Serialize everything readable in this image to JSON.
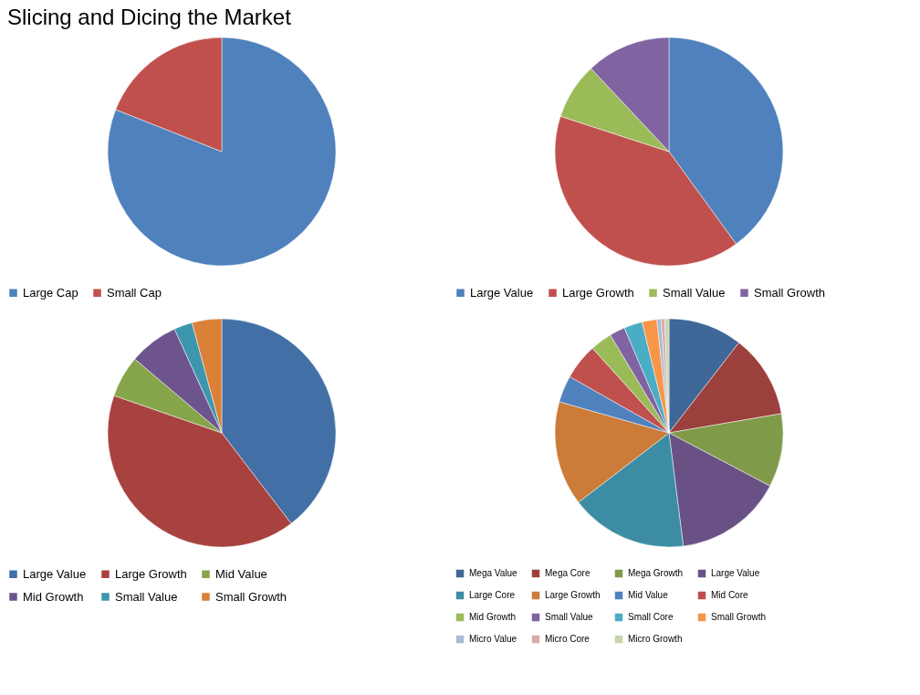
{
  "chart_data": [
    {
      "type": "pie",
      "title": "Slicing and Dicing the Market",
      "categories": [
        "Large Cap",
        "Small Cap"
      ],
      "values": [
        81,
        19
      ],
      "colors": [
        "#4f81bd",
        "#c0504d"
      ],
      "legend": "bottom"
    },
    {
      "type": "pie",
      "categories": [
        "Large Value",
        "Large Growth",
        "Small Value",
        "Small Growth"
      ],
      "values": [
        40,
        40,
        8,
        12
      ],
      "colors": [
        "#4f81bd",
        "#c0504d",
        "#9bbb59",
        "#8064a2"
      ],
      "legend": "bottom"
    },
    {
      "type": "pie",
      "categories": [
        "Large Value",
        "Large Growth",
        "Mid Value",
        "Mid Growth",
        "Small Value",
        "Small Growth"
      ],
      "values": [
        39.6,
        40.7,
        5.9,
        7,
        2.6,
        4.2
      ],
      "colors": [
        "#416fa6",
        "#a8423f",
        "#86a44a",
        "#6e548d",
        "#3d96ae",
        "#da8137"
      ],
      "legend": "bottom"
    },
    {
      "type": "pie",
      "categories": [
        "Mega Value",
        "Mega Core",
        "Mega Growth",
        "Large Value",
        "Large Core",
        "Large Growth",
        "Mid Value",
        "Mid Core",
        "Mid Growth",
        "Small Value",
        "Small Core",
        "Small Growth",
        "Micro Value",
        "Micro Core",
        "Micro Growth"
      ],
      "values": [
        10.5,
        11.8,
        10.4,
        15.3,
        16.6,
        14.8,
        3.8,
        5.1,
        3.1,
        2.2,
        2.6,
        2.1,
        0.6,
        0.5,
        0.6
      ],
      "colors": [
        "#3f6797",
        "#9b403d",
        "#7f9a48",
        "#695185",
        "#3c8da3",
        "#cc7b38",
        "#4f81bd",
        "#c0504d",
        "#9bbb59",
        "#8064a2",
        "#4bacc6",
        "#f79646",
        "#aabad7",
        "#d9aaa9",
        "#c6d6ac"
      ],
      "legend": "bottom"
    }
  ]
}
